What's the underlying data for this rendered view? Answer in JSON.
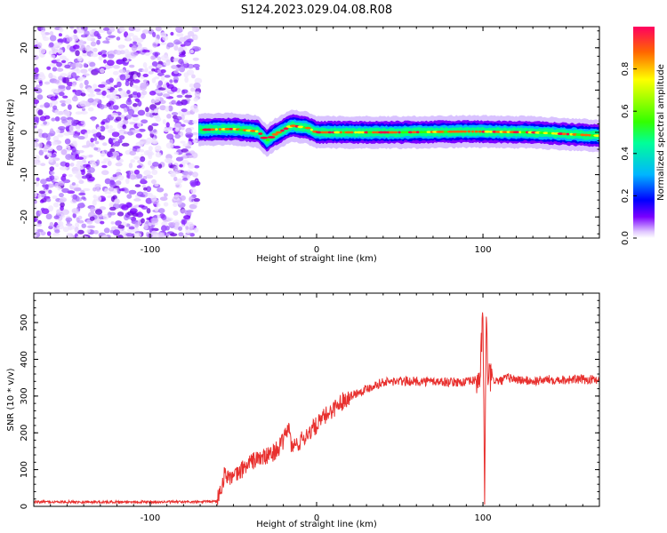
{
  "title": "S124.2023.029.04.08.R08",
  "colors": {
    "snr_line": "#e8302e",
    "background": "#ffffff",
    "colormap": [
      "#ffffff",
      "#7b00ff",
      "#0000ff",
      "#00b5ff",
      "#00ff66",
      "#66ff00",
      "#ffff00",
      "#ff5500",
      "#ff0040"
    ]
  },
  "chart_data": [
    {
      "type": "heatmap",
      "xlabel": "Height of straight line (km)",
      "ylabel": "Frequency (Hz)",
      "xlim": [
        -170,
        170
      ],
      "ylim": [
        -25,
        25
      ],
      "xticks": [
        -100,
        0,
        100
      ],
      "xtick_labels": [
        "-100",
        "0",
        "100"
      ],
      "yticks": [
        -20,
        -10,
        0,
        10,
        20
      ],
      "ytick_labels": [
        "-20",
        "-10",
        "0",
        "10",
        "20"
      ],
      "grid": false,
      "noise_region_x": [
        -170,
        -71
      ],
      "signal_band_x": [
        -71,
        170
      ],
      "signal_center_freq_hz": 0,
      "signal_band_points": [
        {
          "x": -71,
          "f": 0.6
        },
        {
          "x": -50,
          "f": 0.8
        },
        {
          "x": -35,
          "f": 0.2
        },
        {
          "x": -30,
          "f": -2.0
        },
        {
          "x": -25,
          "f": -0.5
        },
        {
          "x": -15,
          "f": 1.6
        },
        {
          "x": -5,
          "f": 1.0
        },
        {
          "x": 0,
          "f": 0.0
        },
        {
          "x": 50,
          "f": 0.0
        },
        {
          "x": 92,
          "f": 0.2
        },
        {
          "x": 130,
          "f": 0.0
        },
        {
          "x": 170,
          "f": -0.8
        }
      ],
      "colorbar": {
        "label": "Normalized spectral amplitude",
        "range": [
          0,
          1
        ],
        "ticks": [
          0.0,
          0.2,
          0.4,
          0.6,
          0.8
        ],
        "tick_labels": [
          "0.0",
          "0.2",
          "0.4",
          "0.6",
          "0.8"
        ]
      }
    },
    {
      "type": "line",
      "xlabel": "Height of straight line (km)",
      "ylabel": "SNR (10 * v/v)",
      "xlim": [
        -170,
        170
      ],
      "ylim": [
        0,
        580
      ],
      "xticks": [
        -100,
        0,
        100
      ],
      "xtick_labels": [
        "-100",
        "0",
        "100"
      ],
      "yticks": [
        0,
        100,
        200,
        300,
        400,
        500
      ],
      "ytick_labels": [
        "0",
        "100",
        "200",
        "300",
        "400",
        "500"
      ],
      "grid": false,
      "series": [
        {
          "color": "#e8302e",
          "x": [
            -170,
            -150,
            -130,
            -110,
            -90,
            -70,
            -60,
            -55,
            -50,
            -45,
            -40,
            -35,
            -30,
            -25,
            -20,
            -17,
            -15,
            -10,
            -5,
            0,
            5,
            10,
            15,
            20,
            25,
            30,
            35,
            40,
            50,
            60,
            70,
            80,
            90,
            98,
            100,
            101,
            102,
            103,
            105,
            110,
            115,
            120,
            130,
            140,
            150,
            160,
            170
          ],
          "y": [
            12,
            12,
            12,
            12,
            12,
            12,
            14,
            90,
            75,
            100,
            120,
            130,
            135,
            150,
            175,
            220,
            160,
            175,
            200,
            220,
            245,
            265,
            285,
            300,
            310,
            320,
            330,
            338,
            340,
            340,
            340,
            338,
            338,
            345,
            520,
            30,
            500,
            360,
            345,
            340,
            350,
            345,
            340,
            345,
            345,
            345,
            345
          ]
        }
      ]
    }
  ]
}
